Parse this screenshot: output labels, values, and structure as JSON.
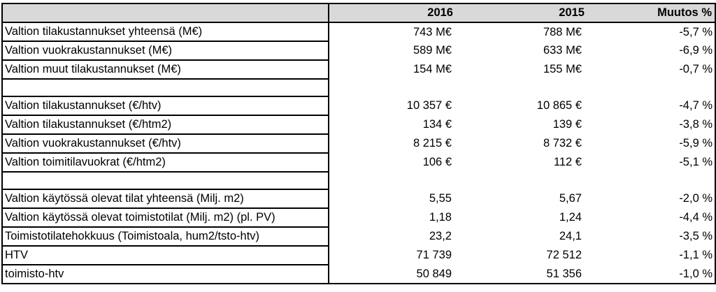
{
  "table": {
    "headers": {
      "label": "",
      "y2016": "2016",
      "y2015": "2015",
      "change": "Muutos %"
    },
    "rows": [
      {
        "label": "Valtion tilakustannukset yhteensä (M€)",
        "y2016": "743 M€",
        "y2015": "788 M€",
        "change": "-5,7 %"
      },
      {
        "label": "Valtion vuokrakustannukset (M€)",
        "y2016": "589 M€",
        "y2015": "633 M€",
        "change": "-6,9 %"
      },
      {
        "label": "Valtion muut tilakustannukset (M€)",
        "y2016": "154 M€",
        "y2015": "155 M€",
        "change": "-0,7 %"
      },
      {
        "label": "",
        "y2016": "",
        "y2015": "",
        "change": ""
      },
      {
        "label": "Valtion tilakustannukset (€/htv)",
        "y2016": "10 357 €",
        "y2015": "10 865 €",
        "change": "-4,7 %"
      },
      {
        "label": "Valtion tilakustannukset (€/htm2)",
        "y2016": "134 €",
        "y2015": "139 €",
        "change": "-3,8 %"
      },
      {
        "label": "Valtion vuokrakustannukset (€/htv)",
        "y2016": "8 215 €",
        "y2015": "8 732 €",
        "change": "-5,9 %"
      },
      {
        "label": "Valtion toimitilavuokrat (€/htm2)",
        "y2016": "106 €",
        "y2015": "112 €",
        "change": "-5,1 %"
      },
      {
        "label": "",
        "y2016": "",
        "y2015": "",
        "change": ""
      },
      {
        "label": "Valtion käytössä olevat tilat yhteensä (Milj. m2)",
        "y2016": "5,55",
        "y2015": "5,67",
        "change": "-2,0 %"
      },
      {
        "label": "Valtion käytössä olevat toimistotilat (Milj. m2) (pl. PV)",
        "y2016": "1,18",
        "y2015": "1,24",
        "change": "-4,4 %"
      },
      {
        "label": "Toimistotilatehokkuus (Toimistoala, hum2/tsto-htv)",
        "y2016": "23,2",
        "y2015": "24,1",
        "change": "-3,5 %"
      },
      {
        "label": "HTV",
        "y2016": "71 739",
        "y2015": "72 512",
        "change": "-1,1 %"
      },
      {
        "label": "toimisto-htv",
        "y2016": "50 849",
        "y2015": "51 356",
        "change": "-1,0 %"
      }
    ]
  }
}
